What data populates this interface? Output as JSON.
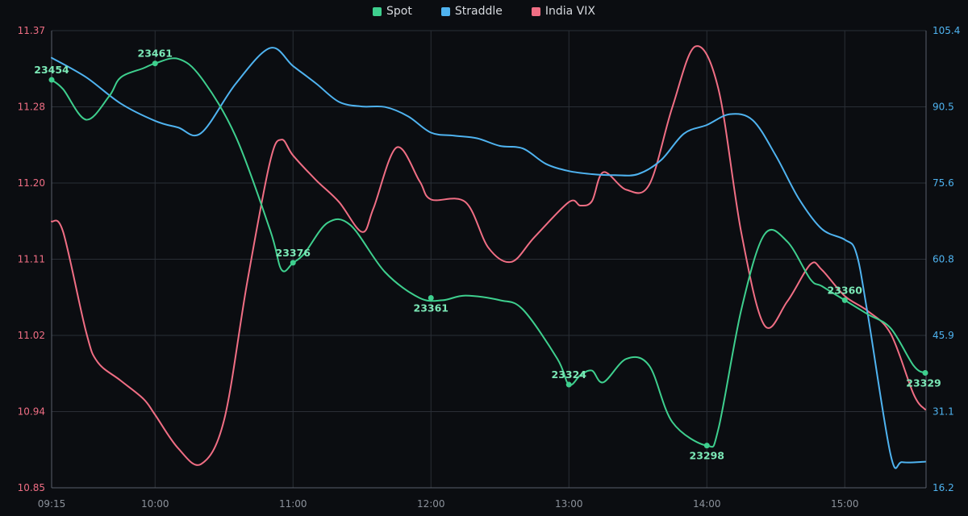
{
  "chart_data": {
    "type": "line",
    "x_labels": [
      "09:15",
      "10:00",
      "11:00",
      "12:00",
      "13:00",
      "14:00",
      "15:00"
    ],
    "grid": true,
    "legend_position": "top-center",
    "left_axis": {
      "ticks": [
        "11.37",
        "11.28",
        "11.20",
        "11.11",
        "11.02",
        "10.94",
        "10.85"
      ],
      "min": 10.85,
      "max": 11.37,
      "color": "#f06e84"
    },
    "right_axis": {
      "ticks": [
        "105.4",
        "90.5",
        "75.6",
        "60.8",
        "45.9",
        "31.1",
        "16.2"
      ],
      "min": 16.2,
      "max": 105.4,
      "color": "#4fb3f0"
    },
    "series": [
      {
        "name": "Spot",
        "color": "#3ecf8e",
        "axis": "spot",
        "points": [
          [
            "09:15",
            23454
          ],
          [
            "09:20",
            23450
          ],
          [
            "09:30",
            23437
          ],
          [
            "09:40",
            23447
          ],
          [
            "09:45",
            23455
          ],
          [
            "09:55",
            23459
          ],
          [
            "10:00",
            23461
          ],
          [
            "10:10",
            23463
          ],
          [
            "10:20",
            23455
          ],
          [
            "10:35",
            23430
          ],
          [
            "10:50",
            23390
          ],
          [
            "10:55",
            23373
          ],
          [
            "11:00",
            23376
          ],
          [
            "11:05",
            23380
          ],
          [
            "11:15",
            23393
          ],
          [
            "11:25",
            23392
          ],
          [
            "11:40",
            23372
          ],
          [
            "11:55",
            23361
          ],
          [
            "12:05",
            23360
          ],
          [
            "12:15",
            23362
          ],
          [
            "12:30",
            23360
          ],
          [
            "12:40",
            23356
          ],
          [
            "12:55",
            23335
          ],
          [
            "13:00",
            23324
          ],
          [
            "13:05",
            23328
          ],
          [
            "13:10",
            23330
          ],
          [
            "13:15",
            23325
          ],
          [
            "13:25",
            23335
          ],
          [
            "13:35",
            23332
          ],
          [
            "13:45",
            23308
          ],
          [
            "14:00",
            23298
          ],
          [
            "14:05",
            23305
          ],
          [
            "14:15",
            23356
          ],
          [
            "14:25",
            23388
          ],
          [
            "14:35",
            23385
          ],
          [
            "14:45",
            23369
          ],
          [
            "14:50",
            23366
          ],
          [
            "15:00",
            23360
          ],
          [
            "15:10",
            23354
          ],
          [
            "15:20",
            23348
          ],
          [
            "15:30",
            23332
          ],
          [
            "15:35",
            23329
          ]
        ],
        "annotations": [
          [
            "09:15",
            "23454"
          ],
          [
            "10:00",
            "23461"
          ],
          [
            "11:00",
            "23376"
          ],
          [
            "12:00",
            "23361"
          ],
          [
            "13:00",
            "23324"
          ],
          [
            "14:00",
            "23298"
          ],
          [
            "15:00",
            "23360"
          ],
          [
            "15:35",
            "23329"
          ]
        ]
      },
      {
        "name": "Straddle",
        "color": "#4fb3f0",
        "axis": "right",
        "points": [
          [
            "09:15",
            100.1
          ],
          [
            "09:30",
            96.3
          ],
          [
            "09:45",
            91.2
          ],
          [
            "10:00",
            87.8
          ],
          [
            "10:10",
            86.5
          ],
          [
            "10:20",
            85.4
          ],
          [
            "10:35",
            95.0
          ],
          [
            "10:50",
            102.0
          ],
          [
            "11:00",
            98.5
          ],
          [
            "11:10",
            95.1
          ],
          [
            "11:20",
            91.5
          ],
          [
            "11:30",
            90.6
          ],
          [
            "11:40",
            90.5
          ],
          [
            "11:50",
            88.7
          ],
          [
            "12:00",
            85.5
          ],
          [
            "12:10",
            84.9
          ],
          [
            "12:20",
            84.4
          ],
          [
            "12:30",
            82.9
          ],
          [
            "12:40",
            82.4
          ],
          [
            "12:50",
            79.4
          ],
          [
            "13:00",
            78.0
          ],
          [
            "13:10",
            77.4
          ],
          [
            "13:20",
            77.2
          ],
          [
            "13:30",
            77.4
          ],
          [
            "13:40",
            80.1
          ],
          [
            "13:50",
            85.3
          ],
          [
            "14:00",
            87.0
          ],
          [
            "14:10",
            89.1
          ],
          [
            "14:20",
            87.9
          ],
          [
            "14:30",
            81.0
          ],
          [
            "14:40",
            72.6
          ],
          [
            "14:50",
            66.7
          ],
          [
            "15:00",
            64.6
          ],
          [
            "15:05",
            62.0
          ],
          [
            "15:10",
            50.0
          ],
          [
            "15:20",
            22.5
          ],
          [
            "15:25",
            21.2
          ],
          [
            "15:35",
            21.3
          ]
        ]
      },
      {
        "name": "India VIX",
        "color": "#f06e84",
        "axis": "left",
        "points": [
          [
            "09:15",
            11.153
          ],
          [
            "09:20",
            11.141
          ],
          [
            "09:30",
            11.027
          ],
          [
            "09:35",
            10.993
          ],
          [
            "09:45",
            10.972
          ],
          [
            "09:55",
            10.951
          ],
          [
            "10:00",
            10.933
          ],
          [
            "10:10",
            10.895
          ],
          [
            "10:20",
            10.877
          ],
          [
            "10:30",
            10.927
          ],
          [
            "10:40",
            11.083
          ],
          [
            "10:50",
            11.221
          ],
          [
            "10:55",
            11.246
          ],
          [
            "11:00",
            11.228
          ],
          [
            "11:10",
            11.2
          ],
          [
            "11:20",
            11.175
          ],
          [
            "11:30",
            11.141
          ],
          [
            "11:35",
            11.168
          ],
          [
            "11:45",
            11.237
          ],
          [
            "11:55",
            11.199
          ],
          [
            "12:00",
            11.178
          ],
          [
            "12:15",
            11.175
          ],
          [
            "12:25",
            11.123
          ],
          [
            "12:35",
            11.107
          ],
          [
            "12:45",
            11.135
          ],
          [
            "13:00",
            11.175
          ],
          [
            "13:05",
            11.171
          ],
          [
            "13:10",
            11.176
          ],
          [
            "13:15",
            11.209
          ],
          [
            "13:25",
            11.189
          ],
          [
            "13:35",
            11.195
          ],
          [
            "13:45",
            11.283
          ],
          [
            "13:55",
            11.352
          ],
          [
            "14:05",
            11.304
          ],
          [
            "14:15",
            11.14
          ],
          [
            "14:25",
            11.035
          ],
          [
            "14:35",
            11.062
          ],
          [
            "14:45",
            11.104
          ],
          [
            "14:50",
            11.098
          ],
          [
            "15:00",
            11.068
          ],
          [
            "15:10",
            11.051
          ],
          [
            "15:20",
            11.025
          ],
          [
            "15:30",
            10.956
          ],
          [
            "15:35",
            10.939
          ]
        ]
      }
    ]
  }
}
